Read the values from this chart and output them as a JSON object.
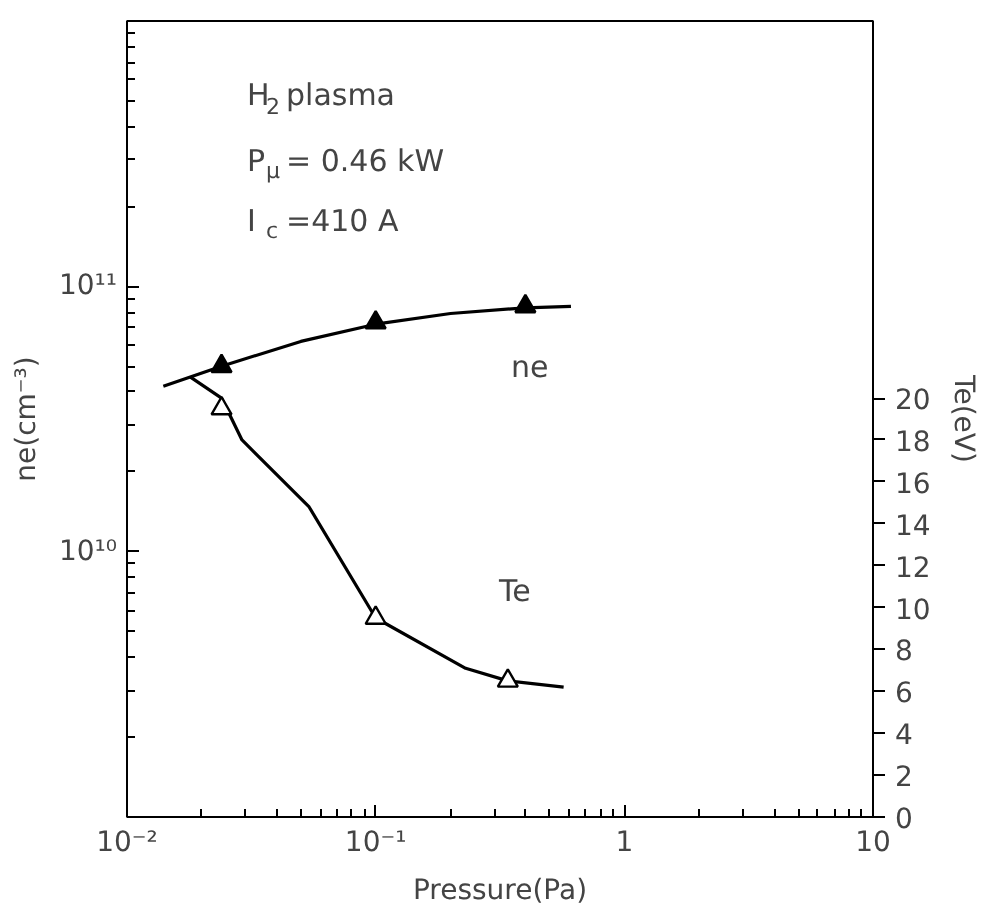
{
  "chart_data": {
    "type": "line",
    "xlabel": "Pressure(Pa)",
    "ylabel": "ne(cm⁻³)",
    "y2label": "Te(eV)",
    "log": "xy",
    "xlim": [
      0.01,
      10
    ],
    "ylim": [
      1000000000.0,
      1000000000000.0
    ],
    "y2lim": [
      0,
      38
    ],
    "xticks": [
      {
        "value": 0.01,
        "label": "10⁻²"
      },
      {
        "value": 0.1,
        "label": "10⁻¹"
      },
      1,
      10
    ],
    "yticks": [
      {
        "value": 10000000000.0,
        "label": "10¹⁰"
      },
      {
        "value": 100000000000.0,
        "label": "10¹¹"
      }
    ],
    "y2ticks": [
      0,
      2,
      4,
      6,
      8,
      10,
      12,
      14,
      16,
      18,
      20
    ],
    "grid": false,
    "series": [
      {
        "color": "#000000",
        "x": [
          0.014,
          0.024,
          0.05,
          0.1,
          0.2,
          0.4,
          0.61
        ],
        "values": [
          42000000000.0,
          50000000000.0,
          62000000000.0,
          72000000000.0,
          79000000000.0,
          83000000000.0,
          84000000000.0
        ],
        "marker": "none"
      },
      {
        "type": "scatter",
        "color": "#000000",
        "x": [
          0.024,
          0.1,
          0.4
        ],
        "values": [
          50000000000.0,
          73000000000.0,
          84000000000.0
        ],
        "marker": "triangle"
      },
      {
        "color": "#000000",
        "axis": "y2",
        "x": [
          0.018,
          0.024,
          0.029,
          0.054,
          0.1,
          0.23,
          0.34,
          0.57
        ],
        "values": [
          21,
          20,
          18,
          14.8,
          9.5,
          7.1,
          6.5,
          6.2
        ],
        "marker": "none"
      },
      {
        "type": "scatter",
        "color": "#ffffff",
        "axis": "y2",
        "x": [
          0.024,
          0.1,
          0.34
        ],
        "values": [
          19.5,
          9.5,
          6.5
        ],
        "marker": "triangle"
      }
    ],
    "annotations": [
      "H$_{2}$ plasma",
      "P$_{μ}$= 0.46  kW",
      "I$_{c}$=410  A",
      "ne",
      "Te"
    ]
  }
}
